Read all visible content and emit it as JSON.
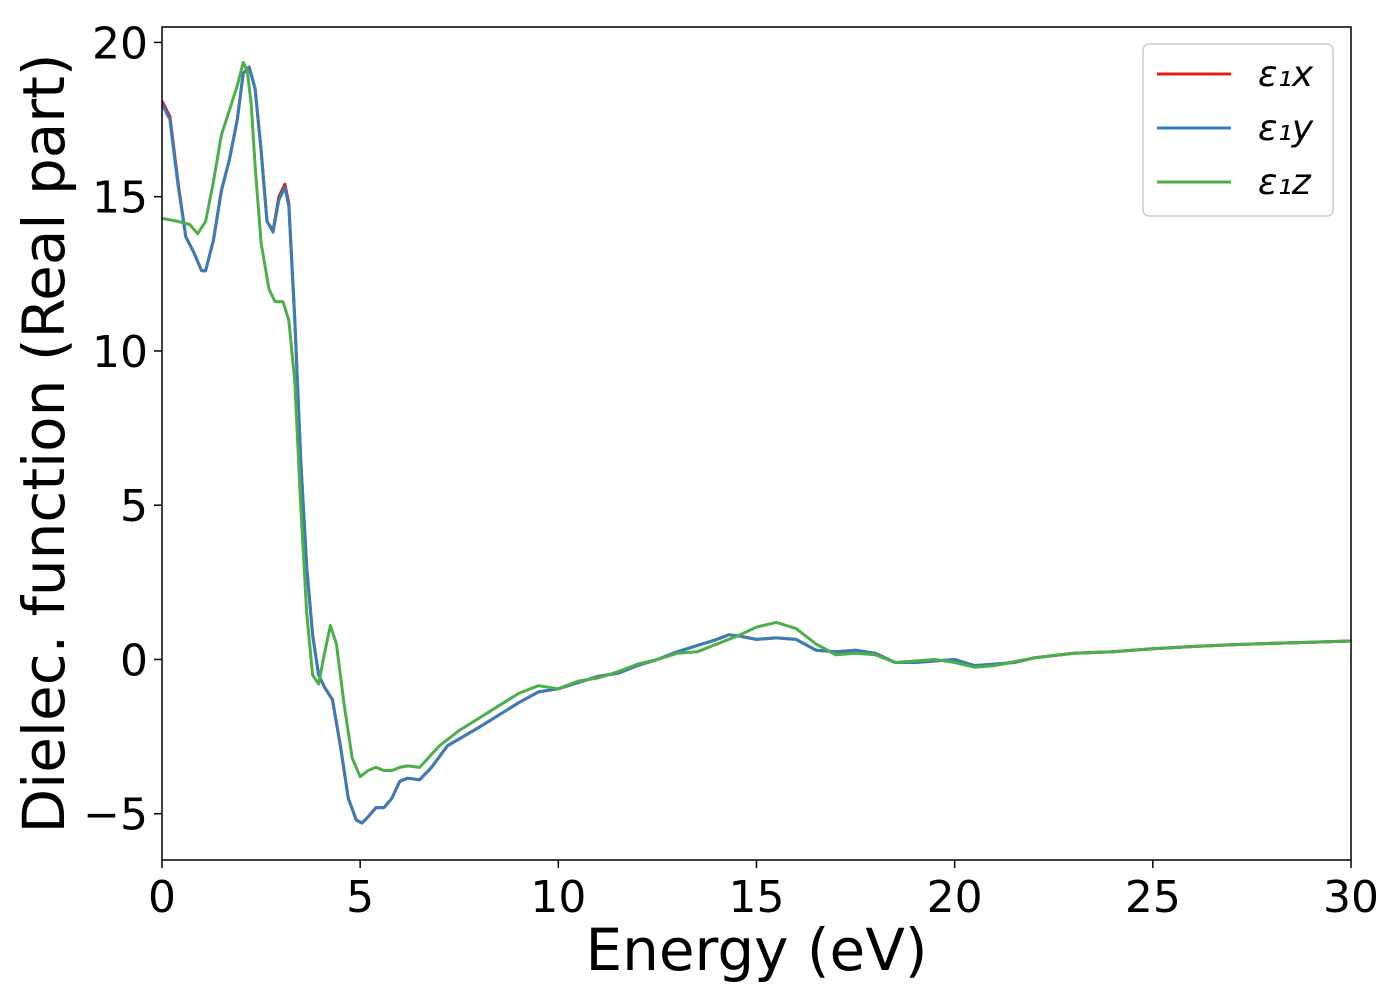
{
  "chart_data": {
    "type": "line",
    "xlabel": "Energy (eV)",
    "ylabel": "Dielec. function (Real part)",
    "xlim": [
      0,
      30
    ],
    "ylim": [
      -6.5,
      20.5
    ],
    "x_ticks": [
      0,
      5,
      10,
      15,
      20,
      25,
      30
    ],
    "x_tick_labels": [
      "0",
      "5",
      "10",
      "15",
      "20",
      "25",
      "30"
    ],
    "y_ticks": [
      -5,
      0,
      5,
      10,
      15,
      20
    ],
    "y_tick_labels": [
      "−5",
      "0",
      "5",
      "10",
      "15",
      "20"
    ],
    "grid": false,
    "legend_position": "top-right",
    "series": [
      {
        "name": "ε₁x",
        "color": "#e41a1c",
        "points": [
          [
            0,
            18.1
          ],
          [
            0.2,
            17.6
          ],
          [
            0.4,
            15.5
          ],
          [
            0.6,
            13.7
          ],
          [
            0.8,
            13.2
          ],
          [
            1.0,
            12.6
          ],
          [
            1.1,
            12.6
          ],
          [
            1.3,
            13.6
          ],
          [
            1.5,
            15.2
          ],
          [
            1.7,
            16.2
          ],
          [
            1.9,
            17.5
          ],
          [
            2.05,
            19.0
          ],
          [
            2.2,
            19.2
          ],
          [
            2.35,
            18.5
          ],
          [
            2.5,
            16.5
          ],
          [
            2.65,
            14.2
          ],
          [
            2.8,
            13.9
          ],
          [
            2.95,
            15.0
          ],
          [
            3.1,
            15.4
          ],
          [
            3.2,
            14.8
          ],
          [
            3.35,
            11.0
          ],
          [
            3.5,
            6.5
          ],
          [
            3.65,
            3.0
          ],
          [
            3.8,
            0.8
          ],
          [
            3.95,
            -0.5
          ],
          [
            4.1,
            -0.9
          ],
          [
            4.3,
            -1.3
          ],
          [
            4.5,
            -2.8
          ],
          [
            4.7,
            -4.5
          ],
          [
            4.9,
            -5.2
          ],
          [
            5.05,
            -5.3
          ],
          [
            5.2,
            -5.1
          ],
          [
            5.4,
            -4.8
          ],
          [
            5.6,
            -4.8
          ],
          [
            5.8,
            -4.5
          ],
          [
            6.0,
            -3.95
          ],
          [
            6.2,
            -3.85
          ],
          [
            6.5,
            -3.9
          ],
          [
            6.8,
            -3.5
          ],
          [
            7.2,
            -2.8
          ],
          [
            7.6,
            -2.5
          ],
          [
            8.0,
            -2.2
          ],
          [
            8.5,
            -1.8
          ],
          [
            9.0,
            -1.4
          ],
          [
            9.5,
            -1.05
          ],
          [
            10.0,
            -0.95
          ],
          [
            10.5,
            -0.75
          ],
          [
            11.0,
            -0.55
          ],
          [
            11.5,
            -0.45
          ],
          [
            12.0,
            -0.2
          ],
          [
            12.5,
            0.0
          ],
          [
            13.0,
            0.25
          ],
          [
            13.5,
            0.45
          ],
          [
            14.0,
            0.65
          ],
          [
            14.3,
            0.8
          ],
          [
            14.6,
            0.75
          ],
          [
            15.0,
            0.65
          ],
          [
            15.5,
            0.7
          ],
          [
            16.0,
            0.65
          ],
          [
            16.5,
            0.3
          ],
          [
            17.0,
            0.25
          ],
          [
            17.5,
            0.3
          ],
          [
            18.0,
            0.2
          ],
          [
            18.5,
            -0.1
          ],
          [
            19.0,
            -0.1
          ],
          [
            19.5,
            -0.05
          ],
          [
            20.0,
            0.0
          ],
          [
            20.5,
            -0.2
          ],
          [
            21.0,
            -0.15
          ],
          [
            21.5,
            -0.1
          ],
          [
            22.0,
            0.05
          ],
          [
            23.0,
            0.2
          ],
          [
            24.0,
            0.25
          ],
          [
            25.0,
            0.35
          ],
          [
            26.0,
            0.42
          ],
          [
            27.0,
            0.48
          ],
          [
            28.0,
            0.52
          ],
          [
            29.0,
            0.56
          ],
          [
            30.0,
            0.6
          ]
        ]
      },
      {
        "name": "ε₁y",
        "color": "#377eb8",
        "points": [
          [
            0,
            18.0
          ],
          [
            0.2,
            17.5
          ],
          [
            0.4,
            15.4
          ],
          [
            0.6,
            13.7
          ],
          [
            0.8,
            13.2
          ],
          [
            1.0,
            12.6
          ],
          [
            1.1,
            12.6
          ],
          [
            1.3,
            13.6
          ],
          [
            1.5,
            15.2
          ],
          [
            1.7,
            16.2
          ],
          [
            1.9,
            17.5
          ],
          [
            2.05,
            19.0
          ],
          [
            2.2,
            19.2
          ],
          [
            2.35,
            18.5
          ],
          [
            2.5,
            16.5
          ],
          [
            2.65,
            14.2
          ],
          [
            2.8,
            13.85
          ],
          [
            2.95,
            14.9
          ],
          [
            3.1,
            15.3
          ],
          [
            3.2,
            14.7
          ],
          [
            3.35,
            11.0
          ],
          [
            3.5,
            6.5
          ],
          [
            3.65,
            3.0
          ],
          [
            3.8,
            0.8
          ],
          [
            3.95,
            -0.5
          ],
          [
            4.1,
            -0.9
          ],
          [
            4.3,
            -1.3
          ],
          [
            4.5,
            -2.8
          ],
          [
            4.7,
            -4.5
          ],
          [
            4.9,
            -5.2
          ],
          [
            5.05,
            -5.3
          ],
          [
            5.2,
            -5.1
          ],
          [
            5.4,
            -4.8
          ],
          [
            5.6,
            -4.8
          ],
          [
            5.8,
            -4.5
          ],
          [
            6.0,
            -3.95
          ],
          [
            6.2,
            -3.85
          ],
          [
            6.5,
            -3.9
          ],
          [
            6.8,
            -3.5
          ],
          [
            7.2,
            -2.8
          ],
          [
            7.6,
            -2.5
          ],
          [
            8.0,
            -2.2
          ],
          [
            8.5,
            -1.8
          ],
          [
            9.0,
            -1.4
          ],
          [
            9.5,
            -1.05
          ],
          [
            10.0,
            -0.95
          ],
          [
            10.5,
            -0.75
          ],
          [
            11.0,
            -0.55
          ],
          [
            11.5,
            -0.45
          ],
          [
            12.0,
            -0.2
          ],
          [
            12.5,
            0.0
          ],
          [
            13.0,
            0.25
          ],
          [
            13.5,
            0.45
          ],
          [
            14.0,
            0.65
          ],
          [
            14.3,
            0.8
          ],
          [
            14.6,
            0.75
          ],
          [
            15.0,
            0.65
          ],
          [
            15.5,
            0.7
          ],
          [
            16.0,
            0.65
          ],
          [
            16.5,
            0.3
          ],
          [
            17.0,
            0.25
          ],
          [
            17.5,
            0.3
          ],
          [
            18.0,
            0.2
          ],
          [
            18.5,
            -0.1
          ],
          [
            19.0,
            -0.1
          ],
          [
            19.5,
            -0.05
          ],
          [
            20.0,
            0.0
          ],
          [
            20.5,
            -0.2
          ],
          [
            21.0,
            -0.15
          ],
          [
            21.5,
            -0.1
          ],
          [
            22.0,
            0.05
          ],
          [
            23.0,
            0.2
          ],
          [
            24.0,
            0.25
          ],
          [
            25.0,
            0.35
          ],
          [
            26.0,
            0.42
          ],
          [
            27.0,
            0.48
          ],
          [
            28.0,
            0.52
          ],
          [
            29.0,
            0.56
          ],
          [
            30.0,
            0.6
          ]
        ]
      },
      {
        "name": "ε₁z",
        "color": "#4daf4a",
        "points": [
          [
            0,
            14.3
          ],
          [
            0.4,
            14.2
          ],
          [
            0.7,
            14.1
          ],
          [
            0.9,
            13.8
          ],
          [
            1.1,
            14.2
          ],
          [
            1.3,
            15.5
          ],
          [
            1.5,
            17.0
          ],
          [
            1.7,
            17.8
          ],
          [
            1.9,
            18.6
          ],
          [
            2.05,
            19.35
          ],
          [
            2.15,
            19.1
          ],
          [
            2.25,
            18.0
          ],
          [
            2.35,
            16.0
          ],
          [
            2.5,
            13.5
          ],
          [
            2.7,
            12.0
          ],
          [
            2.85,
            11.6
          ],
          [
            3.05,
            11.6
          ],
          [
            3.2,
            11.0
          ],
          [
            3.35,
            9.0
          ],
          [
            3.5,
            5.0
          ],
          [
            3.65,
            1.5
          ],
          [
            3.8,
            -0.5
          ],
          [
            3.95,
            -0.8
          ],
          [
            4.1,
            0.2
          ],
          [
            4.25,
            1.1
          ],
          [
            4.4,
            0.5
          ],
          [
            4.6,
            -1.5
          ],
          [
            4.8,
            -3.2
          ],
          [
            5.0,
            -3.8
          ],
          [
            5.2,
            -3.6
          ],
          [
            5.4,
            -3.5
          ],
          [
            5.6,
            -3.6
          ],
          [
            5.8,
            -3.6
          ],
          [
            6.0,
            -3.5
          ],
          [
            6.2,
            -3.45
          ],
          [
            6.5,
            -3.5
          ],
          [
            7.0,
            -2.8
          ],
          [
            7.5,
            -2.3
          ],
          [
            8.0,
            -1.9
          ],
          [
            8.5,
            -1.5
          ],
          [
            9.0,
            -1.1
          ],
          [
            9.5,
            -0.85
          ],
          [
            10.0,
            -0.95
          ],
          [
            10.5,
            -0.7
          ],
          [
            11.0,
            -0.6
          ],
          [
            11.5,
            -0.4
          ],
          [
            12.0,
            -0.15
          ],
          [
            12.5,
            0.0
          ],
          [
            13.0,
            0.2
          ],
          [
            13.5,
            0.25
          ],
          [
            14.0,
            0.5
          ],
          [
            14.5,
            0.75
          ],
          [
            15.0,
            1.05
          ],
          [
            15.5,
            1.2
          ],
          [
            16.0,
            1.0
          ],
          [
            16.5,
            0.5
          ],
          [
            17.0,
            0.15
          ],
          [
            17.5,
            0.2
          ],
          [
            18.0,
            0.15
          ],
          [
            18.5,
            -0.1
          ],
          [
            19.0,
            -0.05
          ],
          [
            19.5,
            0.0
          ],
          [
            20.0,
            -0.1
          ],
          [
            20.5,
            -0.25
          ],
          [
            21.0,
            -0.2
          ],
          [
            22.0,
            0.05
          ],
          [
            23.0,
            0.2
          ],
          [
            24.0,
            0.25
          ],
          [
            25.0,
            0.35
          ],
          [
            26.0,
            0.42
          ],
          [
            27.0,
            0.48
          ],
          [
            28.0,
            0.52
          ],
          [
            29.0,
            0.56
          ],
          [
            30.0,
            0.6
          ]
        ]
      }
    ]
  }
}
